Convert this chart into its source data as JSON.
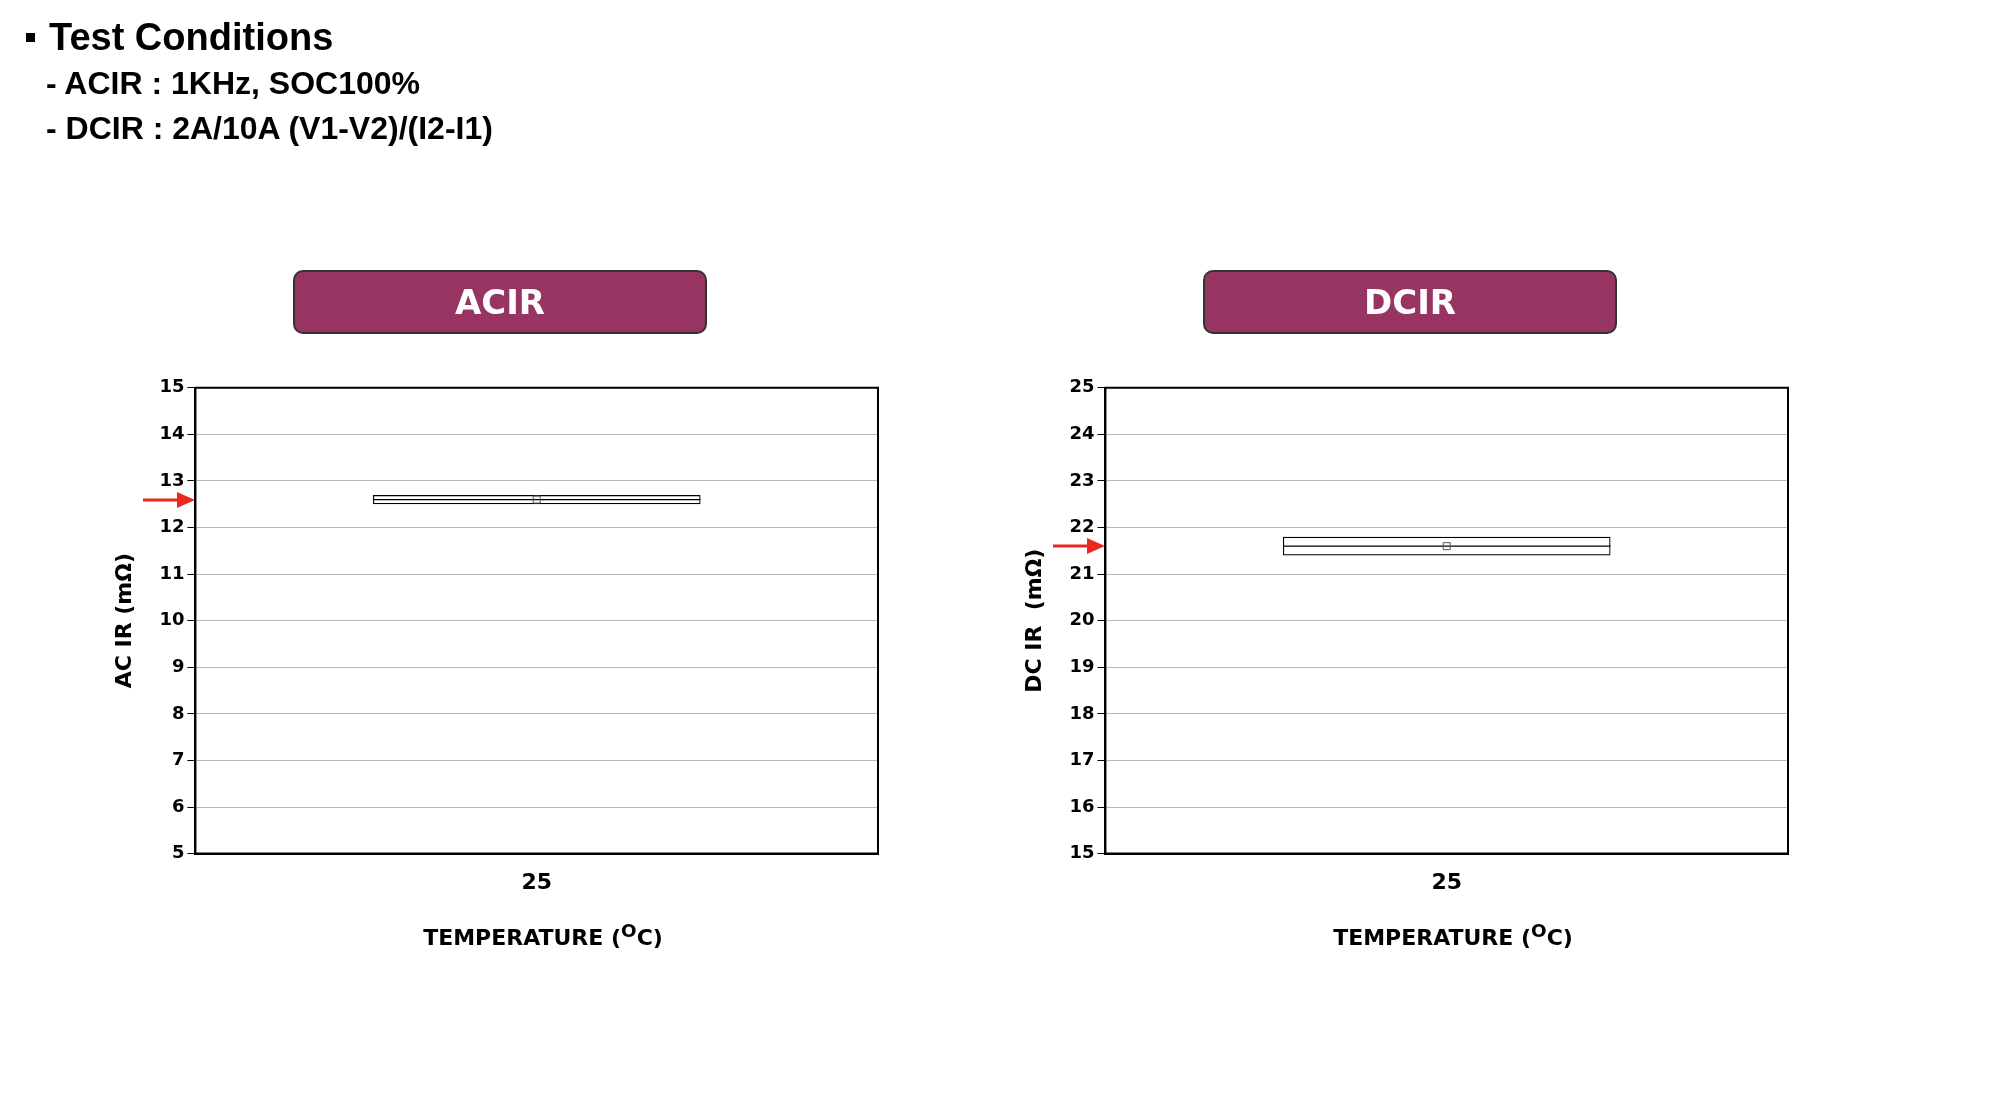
{
  "chart_data": [
    {
      "type": "box",
      "title": "ACIR",
      "xlabel": "TEMPERATURE ($^{O}$C)",
      "ylabel": "AC IR (mΩ)",
      "categories": [
        "25"
      ],
      "boxes": [
        {
          "low": 12.5,
          "q1": 12.5,
          "median": 12.6,
          "q3": 12.7,
          "high": 12.7,
          "mean": 12.6
        }
      ],
      "ylim": [
        5,
        15
      ],
      "yticks": [
        5,
        6,
        7,
        8,
        9,
        10,
        11,
        12,
        13,
        14,
        15
      ],
      "grid": "y",
      "legend": false,
      "annotations": [
        "Test Conditions",
        "- ACIR : 1KHz, SOC100%",
        "- DCIR : 2A/10A (V1-V2)/(I2-I1)"
      ]
    },
    {
      "type": "box",
      "title": "DCIR",
      "xlabel": "TEMPERATURE ($^{O}$C)",
      "ylabel": "DC IR  (mΩ)",
      "categories": [
        "25"
      ],
      "boxes": [
        {
          "low": 21.4,
          "q1": 21.4,
          "median": 21.6,
          "q3": 21.8,
          "high": 21.8,
          "mean": 21.6
        }
      ],
      "ylim": [
        15,
        25
      ],
      "yticks": [
        15,
        16,
        17,
        18,
        19,
        20,
        21,
        22,
        23,
        24,
        25
      ],
      "grid": "y",
      "legend": false
    }
  ]
}
